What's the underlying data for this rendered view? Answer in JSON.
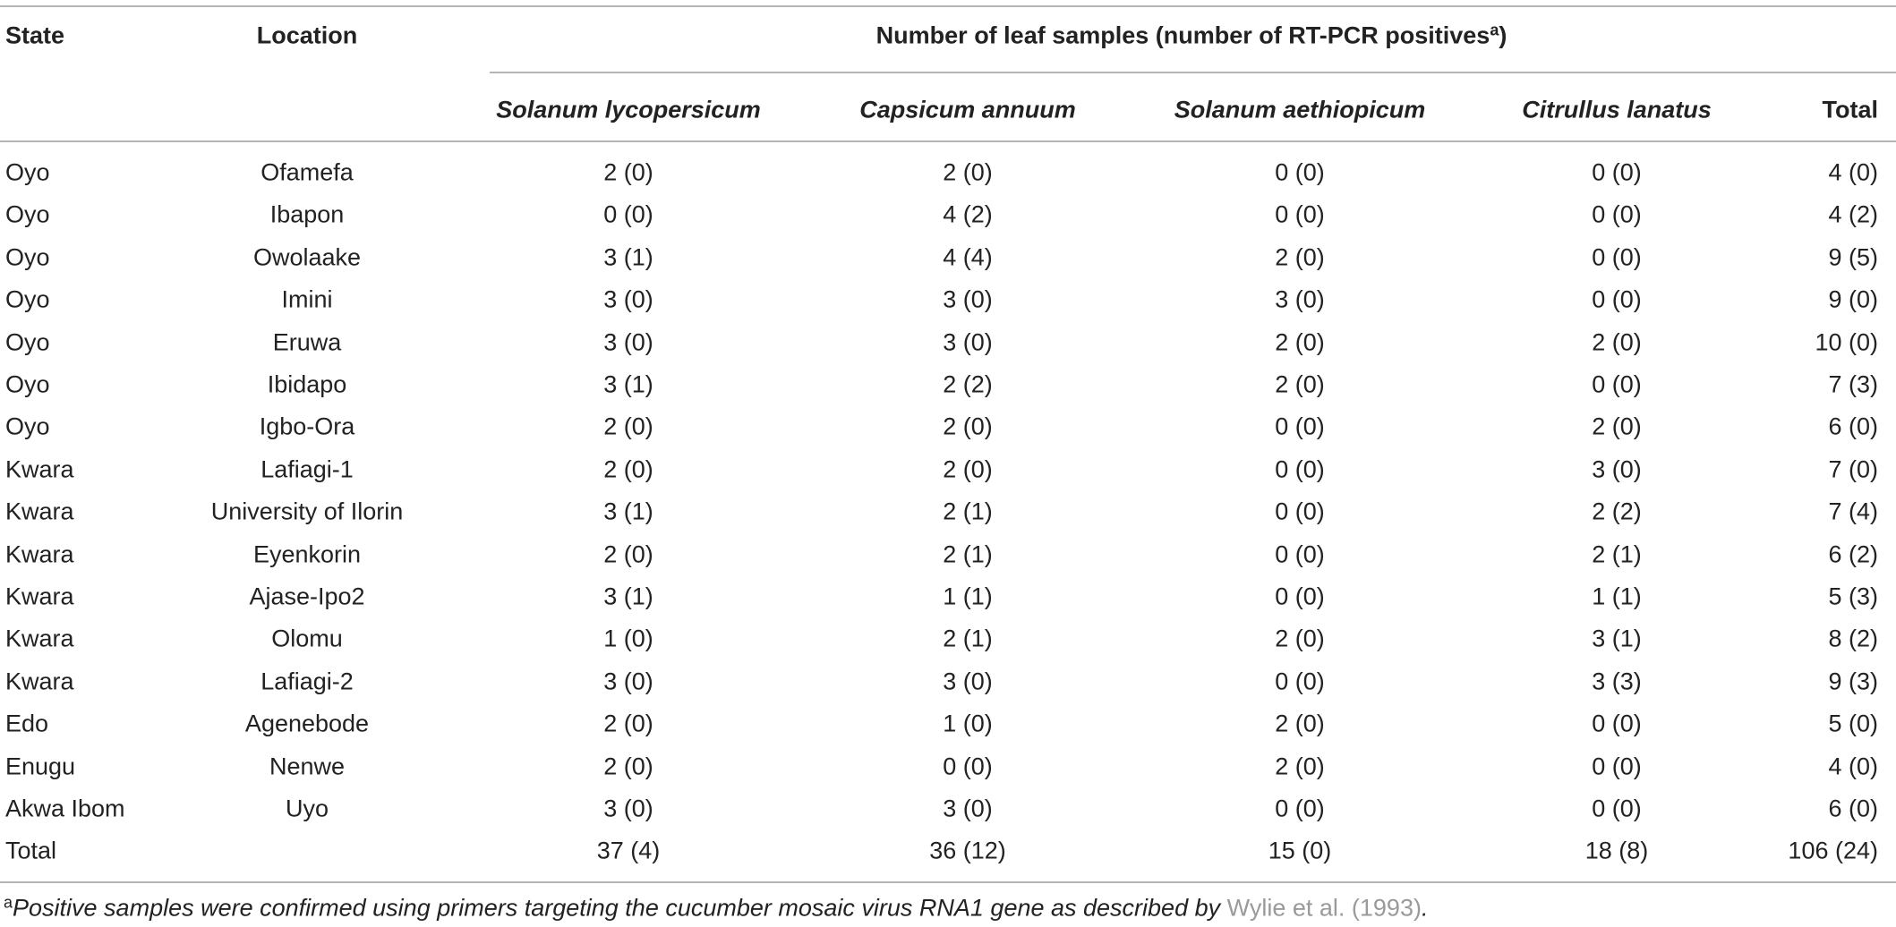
{
  "table": {
    "header": {
      "state": "State",
      "location": "Location",
      "group": {
        "text": "Number of leaf samples (number of RT-PCR positives",
        "sup": "a",
        "close": ")"
      },
      "columns": [
        "Solanum lycopersicum",
        "Capsicum annuum",
        "Solanum aethiopicum",
        "Citrullus lanatus",
        "Total"
      ]
    },
    "rows": [
      [
        "Oyo",
        "Ofamefa",
        "2 (0)",
        "2 (0)",
        "0 (0)",
        "0 (0)",
        "4 (0)"
      ],
      [
        "Oyo",
        "Ibapon",
        "0 (0)",
        "4 (2)",
        "0 (0)",
        "0 (0)",
        "4 (2)"
      ],
      [
        "Oyo",
        "Owolaake",
        "3 (1)",
        "4 (4)",
        "2 (0)",
        "0 (0)",
        "9 (5)"
      ],
      [
        "Oyo",
        "Imini",
        "3 (0)",
        "3 (0)",
        "3 (0)",
        "0 (0)",
        "9 (0)"
      ],
      [
        "Oyo",
        "Eruwa",
        "3 (0)",
        "3 (0)",
        "2 (0)",
        "2 (0)",
        "10 (0)"
      ],
      [
        "Oyo",
        "Ibidapo",
        "3 (1)",
        "2 (2)",
        "2 (0)",
        "0 (0)",
        "7 (3)"
      ],
      [
        "Oyo",
        "Igbo-Ora",
        "2 (0)",
        "2 (0)",
        "0 (0)",
        "2 (0)",
        "6 (0)"
      ],
      [
        "Kwara",
        "Lafiagi-1",
        "2 (0)",
        "2 (0)",
        "0 (0)",
        "3 (0)",
        "7 (0)"
      ],
      [
        "Kwara",
        "University of Ilorin",
        "3 (1)",
        "2 (1)",
        "0 (0)",
        "2 (2)",
        "7 (4)"
      ],
      [
        "Kwara",
        "Eyenkorin",
        "2 (0)",
        "2 (1)",
        "0 (0)",
        "2 (1)",
        "6 (2)"
      ],
      [
        "Kwara",
        "Ajase-Ipo2",
        "3 (1)",
        "1 (1)",
        "0 (0)",
        "1 (1)",
        "5 (3)"
      ],
      [
        "Kwara",
        "Olomu",
        "1 (0)",
        "2 (1)",
        "2 (0)",
        "3 (1)",
        "8 (2)"
      ],
      [
        "Kwara",
        "Lafiagi-2",
        "3 (0)",
        "3 (0)",
        "0 (0)",
        "3 (3)",
        "9 (3)"
      ],
      [
        "Edo",
        "Agenebode",
        "2 (0)",
        "1 (0)",
        "2 (0)",
        "0 (0)",
        "5 (0)"
      ],
      [
        "Enugu",
        "Nenwe",
        "2 (0)",
        "0 (0)",
        "2 (0)",
        "0 (0)",
        "4 (0)"
      ],
      [
        "Akwa Ibom",
        "Uyo",
        "3 (0)",
        "3 (0)",
        "0 (0)",
        "0 (0)",
        "6 (0)"
      ]
    ],
    "total_row": [
      "Total",
      "37 (4)",
      "36 (12)",
      "15 (0)",
      "18 (8)",
      "106 (24)"
    ]
  },
  "footnote": {
    "sup": "a",
    "text": "Positive samples were confirmed using primers targeting the cucumber mosaic virus RNA1 gene as described by ",
    "link": "Wylie et al. (1993)",
    "end": "."
  }
}
